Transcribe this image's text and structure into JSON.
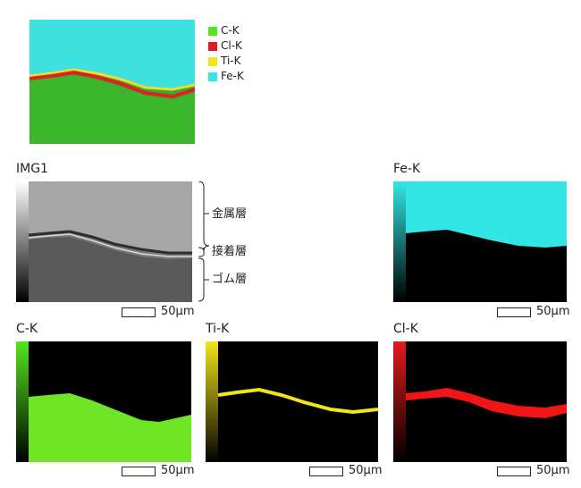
{
  "legend": {
    "items": [
      {
        "label": "C-K",
        "color": "#55e61e"
      },
      {
        "label": "Cl-K",
        "color": "#e31b1b"
      },
      {
        "label": "Ti-K",
        "color": "#f2e51a"
      },
      {
        "label": "Fe-K",
        "color": "#33e6e6"
      }
    ]
  },
  "panels": {
    "img1": {
      "title": "IMG1",
      "scale": "50µm"
    },
    "fe": {
      "title": "Fe-K",
      "scale": "50µm"
    },
    "c": {
      "title": "C-K",
      "scale": "50µm"
    },
    "ti": {
      "title": "Ti-K",
      "scale": "50µm"
    },
    "cl": {
      "title": "Cl-K",
      "scale": "50µm"
    }
  },
  "layers": {
    "metal": "金属層",
    "adhesive": "接着層",
    "rubber": "ゴム層"
  }
}
